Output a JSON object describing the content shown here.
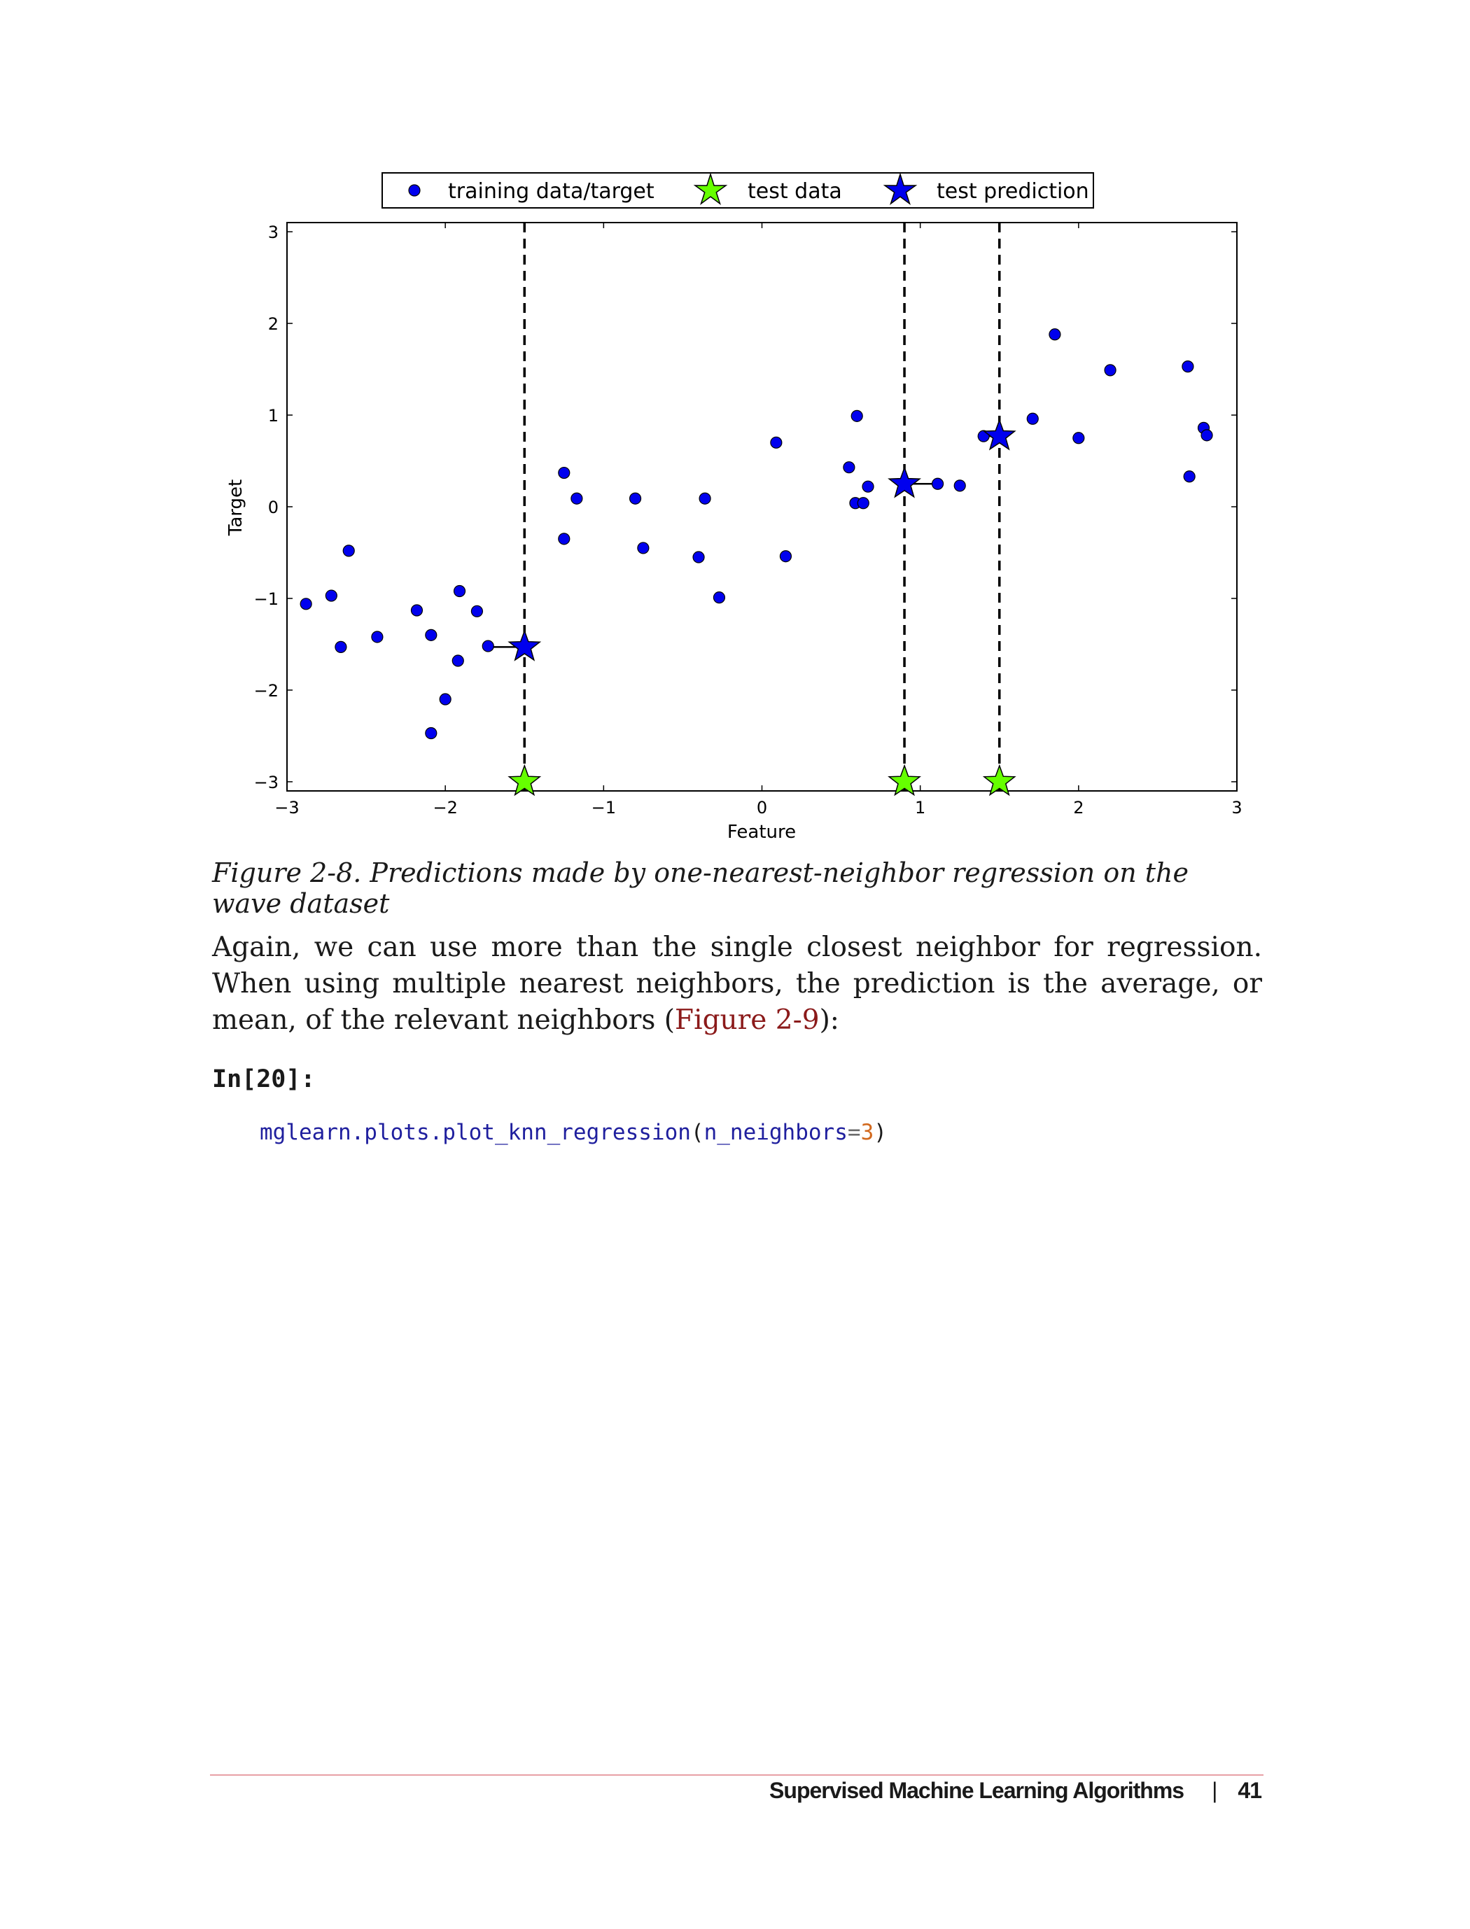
{
  "chart_data": {
    "type": "scatter",
    "xlabel": "Feature",
    "ylabel": "Target",
    "xlim": [
      -3,
      3
    ],
    "ylim": [
      -3.1,
      3.1
    ],
    "xticks": [
      -3,
      -2,
      -1,
      0,
      1,
      2,
      3
    ],
    "yticks": [
      -3,
      -2,
      -1,
      0,
      1,
      2,
      3
    ],
    "xtick_labels": [
      "−3",
      "−2",
      "−1",
      "0",
      "1",
      "2",
      "3"
    ],
    "ytick_labels": [
      "−3",
      "−2",
      "−1",
      "0",
      "1",
      "2",
      "3"
    ],
    "legend": [
      "training data/target",
      "test data",
      "test prediction"
    ],
    "legend_placement": "top-center",
    "colors": {
      "training": "#0000ee",
      "test_data": "#66ff00",
      "test_prediction": "#0000ee"
    },
    "series": [
      {
        "name": "training data/target",
        "marker": "circle",
        "points": [
          [
            -2.88,
            -1.06
          ],
          [
            -2.72,
            -0.97
          ],
          [
            -2.66,
            -1.53
          ],
          [
            -2.61,
            -0.48
          ],
          [
            -2.43,
            -1.42
          ],
          [
            -2.18,
            -1.13
          ],
          [
            -2.09,
            -1.4
          ],
          [
            -2.09,
            -2.47
          ],
          [
            -2.0,
            -2.1
          ],
          [
            -1.92,
            -1.68
          ],
          [
            -1.91,
            -0.92
          ],
          [
            -1.8,
            -1.14
          ],
          [
            -1.73,
            -1.52
          ],
          [
            -1.25,
            0.37
          ],
          [
            -1.25,
            -0.35
          ],
          [
            -1.17,
            0.09
          ],
          [
            -0.8,
            0.09
          ],
          [
            -0.75,
            -0.45
          ],
          [
            -0.4,
            -0.55
          ],
          [
            -0.36,
            0.09
          ],
          [
            -0.27,
            -0.99
          ],
          [
            0.09,
            0.7
          ],
          [
            0.15,
            -0.54
          ],
          [
            0.55,
            0.43
          ],
          [
            0.6,
            0.99
          ],
          [
            0.59,
            0.04
          ],
          [
            0.64,
            0.04
          ],
          [
            0.67,
            0.22
          ],
          [
            1.11,
            0.25
          ],
          [
            1.25,
            0.23
          ],
          [
            1.4,
            0.77
          ],
          [
            1.71,
            0.96
          ],
          [
            1.85,
            1.88
          ],
          [
            2.0,
            0.75
          ],
          [
            2.2,
            1.49
          ],
          [
            2.69,
            1.53
          ],
          [
            2.7,
            0.33
          ],
          [
            2.79,
            0.86
          ],
          [
            2.81,
            0.78
          ]
        ]
      },
      {
        "name": "test data",
        "marker": "star",
        "x": [
          -1.5,
          0.9,
          1.5
        ],
        "y": [
          -3.0,
          -3.0,
          -3.0
        ]
      },
      {
        "name": "test prediction",
        "marker": "star",
        "x": [
          -1.5,
          0.9,
          1.5
        ],
        "y": [
          -1.53,
          0.25,
          0.77
        ],
        "nearest_neighbor_x": [
          -1.73,
          1.11,
          1.4
        ]
      }
    ]
  },
  "caption": "Figure 2-8. Predictions made by one-nearest-neighbor regression on the wave dataset",
  "paragraph": {
    "text_before": "Again, we can use more than the single closest neighbor for regression. When using multiple nearest neighbors, the prediction is the average, or mean, of the relevant neighbors (",
    "link": "Figure 2-9",
    "text_after": "):"
  },
  "code_prompt": "In[20]:",
  "code": {
    "fn": "mglearn.plots.plot_knn_regression",
    "open": "(",
    "arg": "n_neighbors",
    "eq": "=",
    "val": "3",
    "close": ")"
  },
  "footer": {
    "section": "Supervised Machine Learning Algorithms",
    "separator": "|",
    "page": "41"
  }
}
